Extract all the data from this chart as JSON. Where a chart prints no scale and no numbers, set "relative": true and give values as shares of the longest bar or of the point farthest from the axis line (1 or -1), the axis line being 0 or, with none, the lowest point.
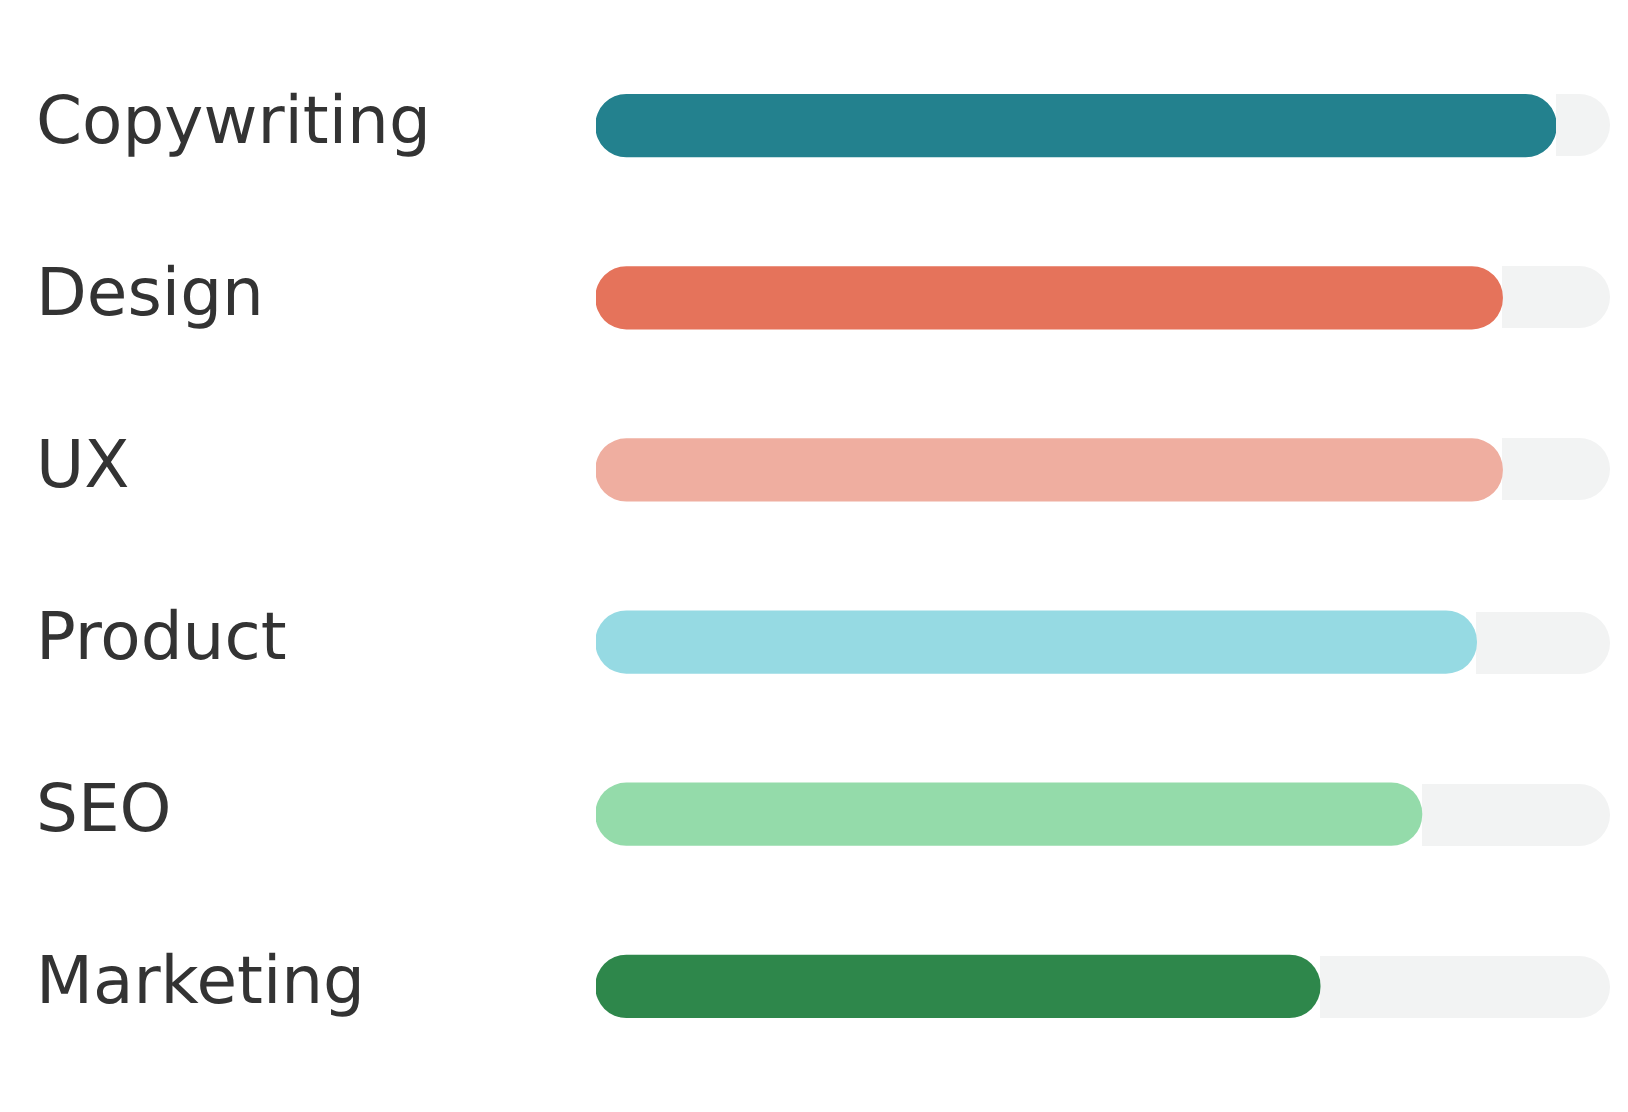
{
  "chart_data": {
    "type": "bar",
    "orientation": "horizontal",
    "relative": true,
    "categories": [
      "Copywriting",
      "Design",
      "UX",
      "Product",
      "SEO",
      "Marketing"
    ],
    "values": [
      1,
      0.944,
      0.944,
      0.917,
      0.86,
      0.754
    ],
    "colors": [
      "#23818e",
      "#e5735b",
      "#efaea0",
      "#96dae3",
      "#94dbaa",
      "#2e874b"
    ],
    "legend": false
  }
}
